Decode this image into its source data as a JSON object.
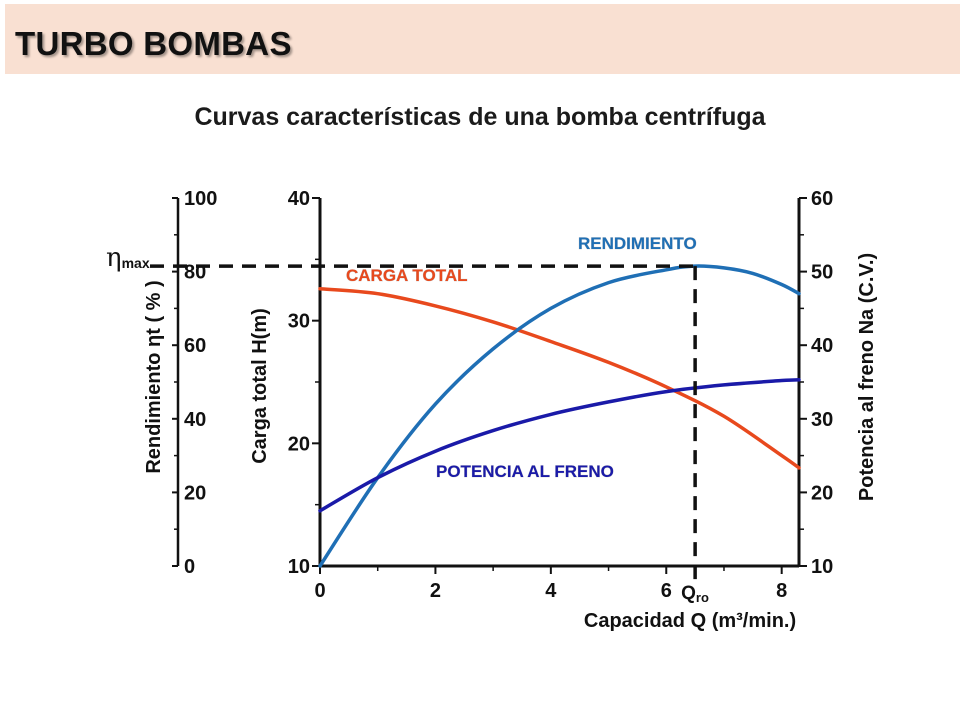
{
  "header": {
    "title": "TURBO BOMBAS"
  },
  "subtitle": "Curvas características de una bomba centrífuga",
  "chart_data": {
    "type": "line",
    "xlabel": "Capacidad  Q  (m³/min.)",
    "x_ticks": [
      "0",
      "2",
      "4",
      "6",
      "8"
    ],
    "xlim": [
      0,
      8.3
    ],
    "axes": {
      "head": {
        "label": "Carga total  H(m)",
        "ticks": [
          "10",
          "20",
          "30",
          "40"
        ],
        "range": [
          10,
          40
        ]
      },
      "efficiency": {
        "label": "Rendimiento  ηt  ( % )",
        "ticks": [
          "0",
          "20",
          "40",
          "60",
          "80",
          "100"
        ],
        "range": [
          0,
          100
        ]
      },
      "power": {
        "label": "Potencia al freno  Na  (C.V.)",
        "ticks": [
          "10",
          "20",
          "30",
          "40",
          "50",
          "60"
        ],
        "range": [
          10,
          60
        ]
      }
    },
    "series": [
      {
        "name": "CARGA TOTAL",
        "axis": "head",
        "color": "#e8491d",
        "x": [
          0,
          1,
          2,
          3,
          4,
          5,
          6,
          7,
          8,
          8.3
        ],
        "y": [
          32.6,
          32.2,
          31.2,
          29.9,
          28.3,
          26.6,
          24.6,
          22.2,
          19.0,
          18.0
        ]
      },
      {
        "name": "RENDIMIENTO",
        "axis": "efficiency",
        "color": "#1f6fb5",
        "x": [
          0,
          1,
          2,
          3,
          4,
          5,
          6,
          6.5,
          7,
          7.5,
          8,
          8.3
        ],
        "y": [
          0,
          24,
          44,
          59,
          70,
          77,
          80.5,
          81.5,
          81,
          79.5,
          76.5,
          74
        ]
      },
      {
        "name": "POTENCIA AL FRENO",
        "axis": "power",
        "color": "#1a1aa8",
        "x": [
          0,
          1,
          2,
          3,
          4,
          5,
          6,
          7,
          8,
          8.3
        ],
        "y": [
          17.5,
          22.0,
          25.6,
          28.4,
          30.6,
          32.3,
          33.7,
          34.6,
          35.2,
          35.3
        ]
      }
    ],
    "markers": {
      "eta_max": {
        "label": "η",
        "sub": "max",
        "value": 81.5
      },
      "q_ro": {
        "label": "Q",
        "sub": "ro",
        "value": 6.5
      }
    },
    "grid": false
  }
}
